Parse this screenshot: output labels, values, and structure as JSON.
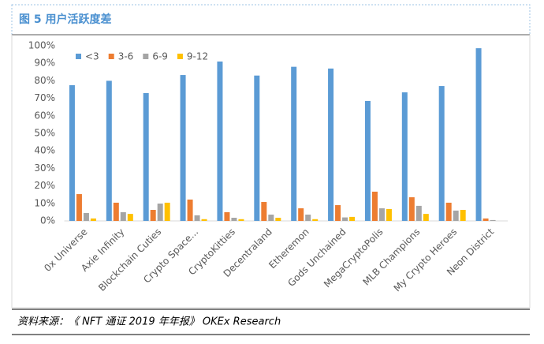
{
  "chart_data": {
    "type": "bar",
    "title": "图 5 用户活跃度差",
    "source": "资料来源：《 NFT 通证 2019 年年报》 OKEx Research",
    "categories": [
      "0x Universe",
      "Axie Infinity",
      "Blockchain Cuties",
      "Crypto Space...",
      "CryptoKitties",
      "Decentraland",
      "Etheremon",
      "Gods Unchained",
      "MegaCryptoPolis",
      "MLB Champions",
      "My Crypto Heroes",
      "Neon District"
    ],
    "series": [
      {
        "name": "<3",
        "color": "#5b9bd5",
        "values": [
          77.5,
          80,
          73,
          83.3,
          91,
          83,
          88,
          87,
          68.5,
          73.4,
          77,
          98.6
        ]
      },
      {
        "name": "3-6",
        "color": "#ed7d31",
        "values": [
          15.3,
          10.4,
          6.3,
          12.2,
          5,
          10.8,
          7.2,
          9,
          16.7,
          13.5,
          10.4,
          1.4
        ]
      },
      {
        "name": "6-9",
        "color": "#a5a5a5",
        "values": [
          4.5,
          5,
          9.9,
          3.2,
          1.8,
          3.6,
          3.6,
          2,
          7.2,
          8.6,
          5.9,
          0.5
        ]
      },
      {
        "name": "9-12",
        "color": "#ffc000",
        "values": [
          1.4,
          4,
          10.4,
          1,
          1,
          1.8,
          1,
          2.3,
          6.8,
          4,
          6.3,
          0
        ]
      }
    ],
    "ylim": [
      0,
      100
    ],
    "yticks": [
      {
        "value": 0,
        "label": "0%"
      },
      {
        "value": 10,
        "label": "10%"
      },
      {
        "value": 20,
        "label": "20%"
      },
      {
        "value": 30,
        "label": "30%"
      },
      {
        "value": 40,
        "label": "40%"
      },
      {
        "value": 50,
        "label": "50%"
      },
      {
        "value": 60,
        "label": "60%"
      },
      {
        "value": 70,
        "label": "70%"
      },
      {
        "value": 80,
        "label": "80%"
      },
      {
        "value": 90,
        "label": "90%"
      },
      {
        "value": 100,
        "label": "100%"
      }
    ],
    "grid": false,
    "legend": "top-left"
  }
}
